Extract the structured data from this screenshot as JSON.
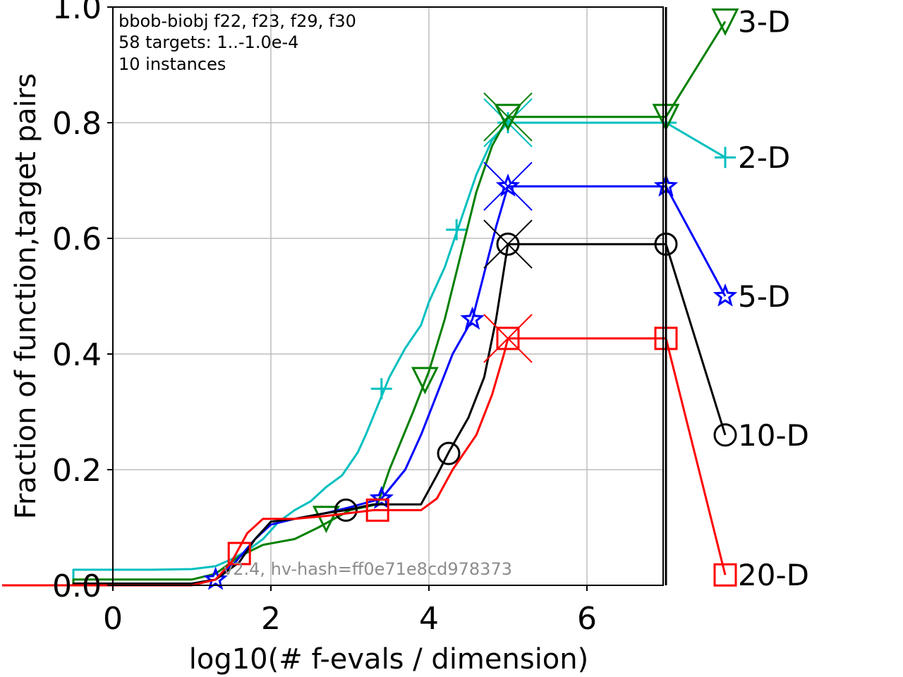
{
  "chart_data": {
    "type": "line",
    "info": {
      "line1": "bbob-biobj f22, f23, f29, f30",
      "line2": "58 targets: 1..-1.0e-4",
      "line3": "10 instances"
    },
    "watermark": "v2.4, hv-hash=ff0e71e8cd978373",
    "xlabel": "log10(# f-evals / dimension)",
    "ylabel": "Fraction of function,target pairs",
    "xlim": [
      -1.4,
      7.8
    ],
    "ylim": [
      0,
      1.0
    ],
    "xticks": [
      "0",
      "2",
      "4",
      "6"
    ],
    "xtick_values": [
      0,
      2,
      4,
      6
    ],
    "yticks": [
      "0.0",
      "0.2",
      "0.4",
      "0.6",
      "0.8",
      "1.0"
    ],
    "ytick_values": [
      0,
      0.2,
      0.4,
      0.6,
      0.8,
      1.0
    ],
    "grid": true,
    "budget_line_x": 7,
    "series": [
      {
        "name": "2-D",
        "color": "#00bfbf",
        "marker": "plus",
        "points": [
          [
            -1.4,
            0.0
          ],
          [
            -0.5,
            0.0
          ],
          [
            -0.5,
            0.027
          ],
          [
            0.5,
            0.027
          ],
          [
            1.0,
            0.028
          ],
          [
            1.3,
            0.033
          ],
          [
            1.5,
            0.045
          ],
          [
            1.7,
            0.06
          ],
          [
            1.9,
            0.08
          ],
          [
            2.1,
            0.11
          ],
          [
            2.3,
            0.13
          ],
          [
            2.5,
            0.145
          ],
          [
            2.7,
            0.17
          ],
          [
            2.9,
            0.19
          ],
          [
            3.1,
            0.23
          ],
          [
            3.2,
            0.26
          ],
          [
            3.35,
            0.31
          ],
          [
            3.5,
            0.36
          ],
          [
            3.7,
            0.41
          ],
          [
            3.9,
            0.45
          ],
          [
            4.0,
            0.49
          ],
          [
            4.2,
            0.55
          ],
          [
            4.4,
            0.63
          ],
          [
            4.6,
            0.71
          ],
          [
            4.8,
            0.77
          ],
          [
            5.0,
            0.8
          ],
          [
            7.0,
            0.8
          ],
          [
            7.75,
            0.74
          ]
        ],
        "markers": [
          [
            3.4,
            0.34
          ],
          [
            4.35,
            0.615
          ],
          [
            5.0,
            0.8
          ],
          [
            7.0,
            0.8
          ],
          [
            7.75,
            0.74
          ]
        ],
        "cross": [
          5.0,
          0.8
        ],
        "label_y": 0.74
      },
      {
        "name": "3-D",
        "color": "#008000",
        "marker": "triangle-down",
        "points": [
          [
            -1.4,
            0.0
          ],
          [
            -0.5,
            0.0
          ],
          [
            -0.5,
            0.01
          ],
          [
            1.0,
            0.01
          ],
          [
            1.3,
            0.02
          ],
          [
            1.6,
            0.05
          ],
          [
            1.9,
            0.07
          ],
          [
            2.3,
            0.08
          ],
          [
            2.6,
            0.1
          ],
          [
            3.0,
            0.13
          ],
          [
            3.35,
            0.14
          ],
          [
            3.5,
            0.2
          ],
          [
            3.8,
            0.3
          ],
          [
            4.0,
            0.37
          ],
          [
            4.2,
            0.46
          ],
          [
            4.4,
            0.57
          ],
          [
            4.6,
            0.68
          ],
          [
            4.8,
            0.76
          ],
          [
            5.0,
            0.81
          ],
          [
            7.0,
            0.81
          ],
          [
            7.75,
            0.975
          ]
        ],
        "markers": [
          [
            2.7,
            0.115
          ],
          [
            3.95,
            0.355
          ],
          [
            5.0,
            0.81
          ],
          [
            7.0,
            0.81
          ],
          [
            7.75,
            0.975
          ]
        ],
        "cross": [
          5.0,
          0.81
        ],
        "label_y": 0.975
      },
      {
        "name": "5-D",
        "color": "#0000ff",
        "marker": "star",
        "points": [
          [
            -1.4,
            0.0
          ],
          [
            -0.5,
            0.0
          ],
          [
            1.0,
            0.003
          ],
          [
            1.3,
            0.01
          ],
          [
            1.55,
            0.04
          ],
          [
            1.8,
            0.08
          ],
          [
            2.0,
            0.105
          ],
          [
            2.3,
            0.115
          ],
          [
            2.7,
            0.125
          ],
          [
            3.0,
            0.135
          ],
          [
            3.4,
            0.15
          ],
          [
            3.7,
            0.2
          ],
          [
            3.9,
            0.26
          ],
          [
            4.1,
            0.33
          ],
          [
            4.3,
            0.4
          ],
          [
            4.55,
            0.46
          ],
          [
            4.7,
            0.54
          ],
          [
            4.85,
            0.62
          ],
          [
            5.0,
            0.69
          ],
          [
            7.0,
            0.69
          ],
          [
            7.75,
            0.5
          ]
        ],
        "markers": [
          [
            1.3,
            0.01
          ],
          [
            3.4,
            0.15
          ],
          [
            4.55,
            0.46
          ],
          [
            5.0,
            0.69
          ],
          [
            7.0,
            0.69
          ],
          [
            7.75,
            0.5
          ]
        ],
        "cross": [
          5.0,
          0.69
        ],
        "label_y": 0.5
      },
      {
        "name": "10-D",
        "color": "#000000",
        "marker": "circle",
        "points": [
          [
            -1.4,
            0.0
          ],
          [
            -0.5,
            0.0
          ],
          [
            -0.5,
            0.003
          ],
          [
            1.0,
            0.003
          ],
          [
            1.3,
            0.01
          ],
          [
            1.6,
            0.04
          ],
          [
            1.8,
            0.08
          ],
          [
            2.0,
            0.11
          ],
          [
            2.3,
            0.115
          ],
          [
            2.7,
            0.125
          ],
          [
            2.95,
            0.13
          ],
          [
            3.3,
            0.14
          ],
          [
            3.9,
            0.14
          ],
          [
            4.1,
            0.19
          ],
          [
            4.25,
            0.23
          ],
          [
            4.5,
            0.29
          ],
          [
            4.7,
            0.36
          ],
          [
            4.85,
            0.46
          ],
          [
            5.0,
            0.59
          ],
          [
            7.0,
            0.59
          ],
          [
            7.75,
            0.26
          ]
        ],
        "markers": [
          [
            2.95,
            0.13
          ],
          [
            4.25,
            0.228
          ],
          [
            5.0,
            0.59
          ],
          [
            7.0,
            0.59
          ],
          [
            7.75,
            0.26
          ]
        ],
        "cross": [
          5.0,
          0.59
        ],
        "label_y": 0.26
      },
      {
        "name": "20-D",
        "color": "#ff0000",
        "marker": "square",
        "points": [
          [
            -1.4,
            0.0
          ],
          [
            1.0,
            0.0
          ],
          [
            1.3,
            0.01
          ],
          [
            1.5,
            0.04
          ],
          [
            1.7,
            0.09
          ],
          [
            1.9,
            0.115
          ],
          [
            2.3,
            0.115
          ],
          [
            2.7,
            0.12
          ],
          [
            3.3,
            0.13
          ],
          [
            3.9,
            0.13
          ],
          [
            4.1,
            0.15
          ],
          [
            4.3,
            0.2
          ],
          [
            4.6,
            0.26
          ],
          [
            4.8,
            0.33
          ],
          [
            4.95,
            0.4
          ],
          [
            5.0,
            0.427
          ],
          [
            7.0,
            0.427
          ],
          [
            7.75,
            0.018
          ]
        ],
        "markers": [
          [
            1.6,
            0.055
          ],
          [
            3.35,
            0.13
          ],
          [
            5.0,
            0.427
          ],
          [
            7.0,
            0.427
          ],
          [
            7.75,
            0.018
          ]
        ],
        "cross": [
          5.0,
          0.427
        ],
        "label_y": 0.018
      }
    ]
  }
}
